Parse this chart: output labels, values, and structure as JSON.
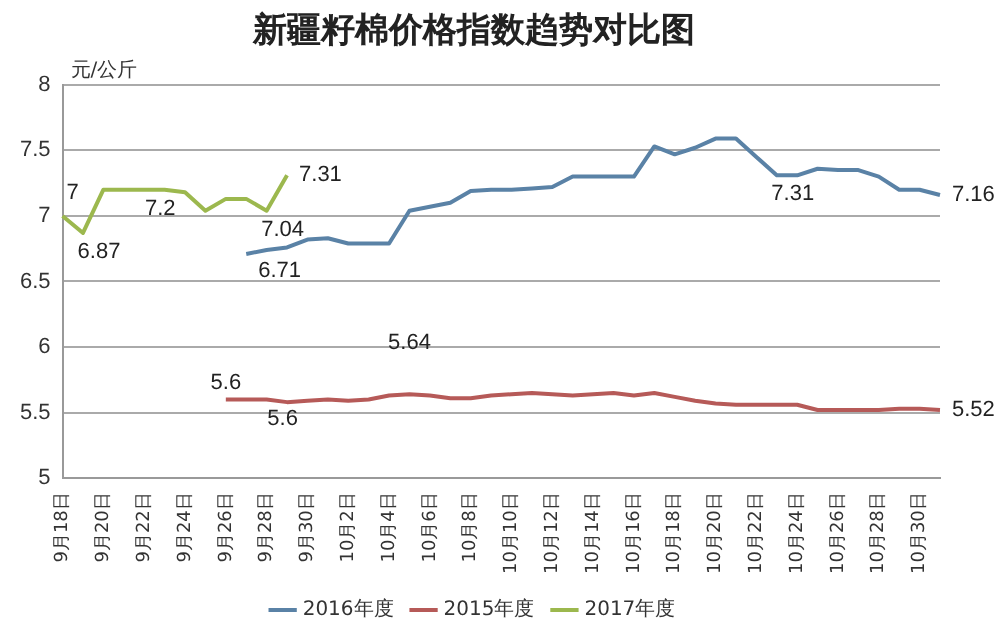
{
  "chart_data": {
    "type": "line",
    "title": "新疆籽棉价格指数趋势对比图",
    "ylabel": "元/公斤",
    "categories": [
      "9月18日",
      null,
      "9月20日",
      null,
      "9月22日",
      null,
      "9月24日",
      null,
      "9月26日",
      null,
      "9月28日",
      null,
      "9月30日",
      null,
      "10月2日",
      null,
      "10月4日",
      null,
      "10月6日",
      null,
      "10月8日",
      null,
      "10月10日",
      null,
      "10月12日",
      null,
      "10月14日",
      null,
      "10月16日",
      null,
      "10月18日",
      null,
      "10月20日",
      null,
      "10月22日",
      null,
      "10月24日",
      null,
      "10月26日",
      null,
      "10月28日",
      null,
      "10月30日",
      null
    ],
    "series": [
      {
        "name": "2016年度",
        "color": "#5a82a6",
        "values": [
          null,
          null,
          null,
          null,
          null,
          null,
          null,
          null,
          null,
          6.71,
          6.74,
          6.76,
          6.82,
          6.83,
          6.79,
          6.79,
          6.79,
          7.04,
          7.07,
          7.1,
          7.19,
          7.2,
          7.2,
          7.21,
          7.22,
          7.3,
          7.3,
          7.3,
          7.3,
          7.53,
          7.47,
          7.52,
          7.59,
          7.59,
          7.45,
          7.31,
          7.31,
          7.36,
          7.35,
          7.35,
          7.3,
          7.2,
          7.2,
          7.16
        ],
        "value_labels": [
          null,
          null,
          null,
          null,
          null,
          null,
          null,
          null,
          null,
          "6.71",
          null,
          null,
          null,
          null,
          null,
          null,
          null,
          null,
          null,
          null,
          null,
          null,
          null,
          null,
          null,
          null,
          null,
          null,
          null,
          null,
          null,
          null,
          null,
          null,
          null,
          "7.31",
          null,
          null,
          null,
          null,
          null,
          null,
          null,
          "7.16"
        ]
      },
      {
        "name": "2015年度",
        "color": "#b65a58",
        "values": [
          null,
          null,
          null,
          null,
          null,
          null,
          null,
          null,
          5.6,
          5.6,
          5.6,
          5.58,
          5.59,
          5.6,
          5.59,
          5.6,
          5.63,
          5.64,
          5.63,
          5.61,
          5.61,
          5.63,
          5.64,
          5.65,
          5.64,
          5.63,
          5.64,
          5.65,
          5.63,
          5.65,
          5.62,
          5.59,
          5.57,
          5.56,
          5.56,
          5.56,
          5.56,
          5.52,
          5.52,
          5.52,
          5.52,
          5.53,
          5.53,
          5.52
        ],
        "value_labels": [
          null,
          null,
          null,
          null,
          null,
          null,
          null,
          null,
          "5.6",
          null,
          "5.6",
          null,
          null,
          null,
          null,
          null,
          null,
          "5.64",
          null,
          null,
          null,
          null,
          null,
          null,
          null,
          null,
          null,
          null,
          null,
          null,
          null,
          null,
          null,
          null,
          null,
          null,
          null,
          null,
          null,
          null,
          null,
          null,
          null,
          "5.52"
        ]
      },
      {
        "name": "2017年度",
        "color": "#9cb84e",
        "values": [
          7,
          6.87,
          7.2,
          7.2,
          7.2,
          7.2,
          7.18,
          7.04,
          7.13,
          7.13,
          7.04,
          7.31,
          null,
          null,
          null,
          null,
          null,
          null,
          null,
          null,
          null,
          null,
          null,
          null,
          null,
          null,
          null,
          null,
          null,
          null,
          null,
          null,
          null,
          null,
          null,
          null,
          null,
          null,
          null,
          null,
          null,
          null,
          null,
          null
        ],
        "value_labels": [
          "7",
          "6.87",
          null,
          null,
          "7.2",
          null,
          null,
          null,
          null,
          null,
          "7.04",
          "7.31",
          null,
          null,
          null,
          null,
          null,
          null,
          null,
          null,
          null,
          null,
          null,
          null,
          null,
          null,
          null,
          null,
          null,
          null,
          null,
          null,
          null,
          null,
          null,
          null,
          null,
          null,
          null,
          null,
          null,
          null,
          null,
          null
        ]
      }
    ],
    "ylim": [
      5,
      8
    ],
    "yticks": [
      5,
      5.5,
      6,
      6.5,
      7,
      7.5,
      8
    ],
    "grid": "y",
    "legend": "bottom",
    "marker": "none",
    "line_style": "solid"
  }
}
